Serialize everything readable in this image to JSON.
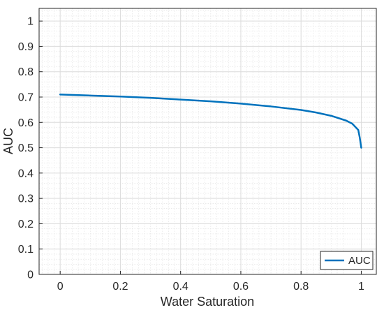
{
  "chart_data": {
    "type": "line",
    "xlabel": "Water Saturation",
    "ylabel": "AUC",
    "xlim": [
      -0.07,
      1.05
    ],
    "ylim": [
      0,
      1.05
    ],
    "xticks": [
      0,
      0.2,
      0.4,
      0.6,
      0.8,
      1
    ],
    "xtick_labels": [
      "0",
      "0.2",
      "0.4",
      "0.6",
      "0.8",
      "1"
    ],
    "yticks": [
      0,
      0.1,
      0.2,
      0.3,
      0.4,
      0.5,
      0.6,
      0.7,
      0.8,
      0.9,
      1
    ],
    "ytick_labels": [
      "0",
      "0.1",
      "0.2",
      "0.3",
      "0.4",
      "0.5",
      "0.6",
      "0.7",
      "0.8",
      "0.9",
      "1"
    ],
    "grid": true,
    "minor_grid": true,
    "legend_position": "bottom-right",
    "series": [
      {
        "name": "AUC",
        "color": "#0072BD",
        "x": [
          0,
          0.1,
          0.2,
          0.3,
          0.4,
          0.5,
          0.6,
          0.7,
          0.8,
          0.85,
          0.9,
          0.95,
          0.97,
          0.99,
          0.995,
          1.0
        ],
        "y": [
          0.71,
          0.706,
          0.702,
          0.697,
          0.69,
          0.683,
          0.674,
          0.663,
          0.649,
          0.639,
          0.626,
          0.607,
          0.595,
          0.57,
          0.54,
          0.5
        ]
      }
    ]
  }
}
